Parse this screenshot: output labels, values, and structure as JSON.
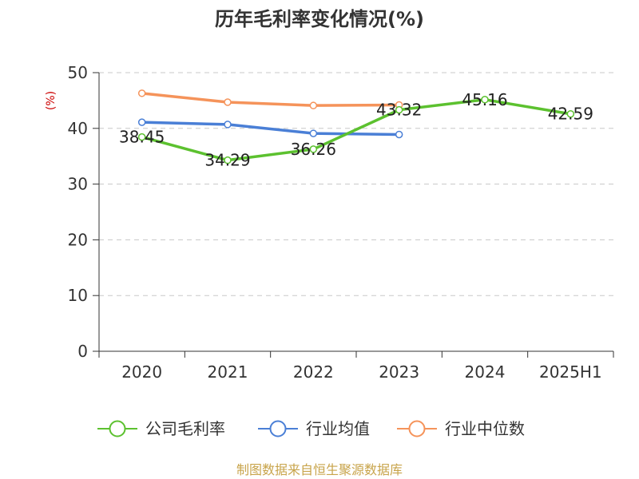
{
  "chart_data": {
    "type": "line",
    "title": "历年毛利率变化情况(%)",
    "ylabel": "(%)",
    "categories": [
      "2020",
      "2021",
      "2022",
      "2023",
      "2024",
      "2025H1"
    ],
    "ylim": [
      0,
      50
    ],
    "yticks": [
      0,
      10,
      20,
      30,
      40,
      50
    ],
    "grid": true,
    "legend_position": "bottom",
    "series": [
      {
        "name": "公司毛利率",
        "color": "#5cc12f",
        "values": [
          38.45,
          34.29,
          36.26,
          43.32,
          45.16,
          42.59
        ],
        "labels": [
          "38.45",
          "34.29",
          "36.26",
          "43.32",
          "45.16",
          "42.59"
        ]
      },
      {
        "name": "行业均值",
        "color": "#4a7fd6",
        "values": [
          41.1,
          40.7,
          39.1,
          38.9,
          null,
          null
        ]
      },
      {
        "name": "行业中位数",
        "color": "#f5935a",
        "values": [
          46.3,
          44.7,
          44.1,
          44.2,
          null,
          null
        ]
      }
    ]
  },
  "footer": "制图数据来自恒生聚源数据库"
}
